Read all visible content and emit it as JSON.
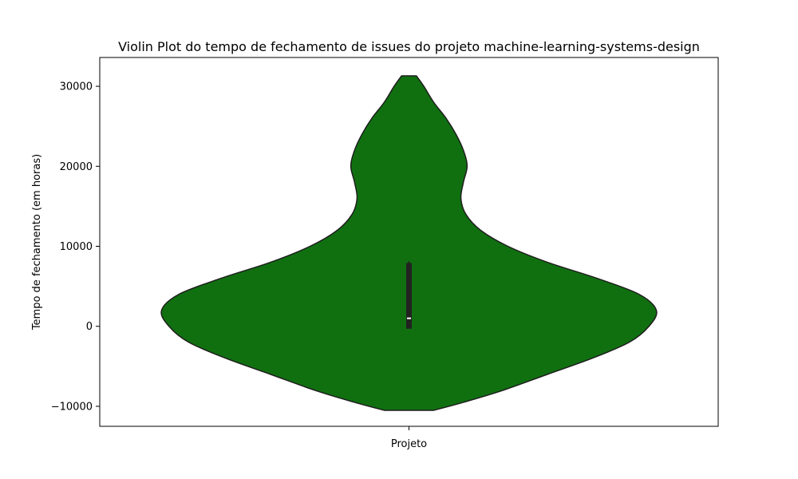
{
  "chart_data": {
    "type": "violin",
    "title": "Violin Plot do tempo de fechamento de issues do projeto machine-learning-systems-design",
    "xlabel": "",
    "ylabel": "Tempo de fechamento (em horas)",
    "categories": [
      "Projeto"
    ],
    "yticks": [
      -10000,
      0,
      10000,
      20000,
      30000
    ],
    "ytick_labels": [
      "−10000",
      "0",
      "10000",
      "20000",
      "30000"
    ],
    "ylim": [
      -12500,
      33600
    ],
    "grid": false,
    "colors": {
      "fill": "#107010",
      "edge": "#1e1e1e",
      "box": "#222222",
      "median": "#ffffff"
    },
    "violin": {
      "profile": [
        {
          "y": -10500,
          "half_width_fraction": 0.1
        },
        {
          "y": -9500,
          "half_width_fraction": 0.22
        },
        {
          "y": -8000,
          "half_width_fraction": 0.38
        },
        {
          "y": -6000,
          "half_width_fraction": 0.56
        },
        {
          "y": -4000,
          "half_width_fraction": 0.74
        },
        {
          "y": -2000,
          "half_width_fraction": 0.89
        },
        {
          "y": 0,
          "half_width_fraction": 0.97
        },
        {
          "y": 2000,
          "half_width_fraction": 1.0
        },
        {
          "y": 4000,
          "half_width_fraction": 0.93
        },
        {
          "y": 6000,
          "half_width_fraction": 0.76
        },
        {
          "y": 8000,
          "half_width_fraction": 0.56
        },
        {
          "y": 10000,
          "half_width_fraction": 0.4
        },
        {
          "y": 12000,
          "half_width_fraction": 0.29
        },
        {
          "y": 14000,
          "half_width_fraction": 0.23
        },
        {
          "y": 16000,
          "half_width_fraction": 0.21
        },
        {
          "y": 18000,
          "half_width_fraction": 0.22
        },
        {
          "y": 20000,
          "half_width_fraction": 0.235
        },
        {
          "y": 22000,
          "half_width_fraction": 0.22
        },
        {
          "y": 24000,
          "half_width_fraction": 0.19
        },
        {
          "y": 26000,
          "half_width_fraction": 0.15
        },
        {
          "y": 28000,
          "half_width_fraction": 0.1
        },
        {
          "y": 30000,
          "half_width_fraction": 0.06
        },
        {
          "y": 31300,
          "half_width_fraction": 0.03
        }
      ],
      "whisker_low": -300,
      "q1": -300,
      "median": 1000,
      "q3": 7900,
      "whisker_high": 8100
    }
  }
}
